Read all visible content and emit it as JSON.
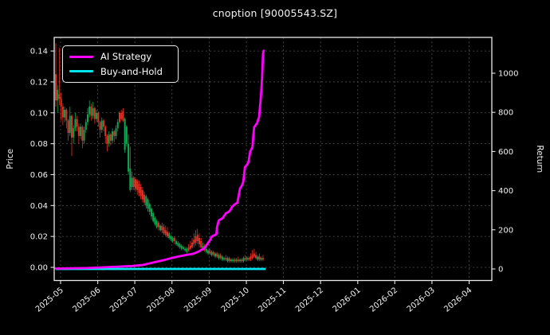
{
  "title": "cnoption [90005543.SZ]",
  "legend": {
    "items": [
      {
        "label": "AI Strategy",
        "color": "#ff00ff"
      },
      {
        "label": "Buy-and-Hold",
        "color": "#00e5ee"
      }
    ]
  },
  "colors": {
    "background": "#000000",
    "text": "#f2f2f2",
    "spine": "#e9e9e9",
    "grid": "#4f4f4f",
    "candle_up": "#0ca750",
    "candle_down": "#e03328",
    "ai_line": "#ff00ff",
    "buyhold_line": "#00e5ee"
  },
  "chart_data": {
    "type": "candlestick+line",
    "title": "cnoption [90005543.SZ]",
    "xlabel": "",
    "ylabel_left": "Price",
    "ylabel_right": "Return",
    "grid": true,
    "legend_position": "upper-left",
    "x_tick_labels": [
      "2025-05",
      "2025-06",
      "2025-07",
      "2025-08",
      "2025-09",
      "2025-10",
      "2025-11",
      "2025-12",
      "2026-01",
      "2026-02",
      "2026-03",
      "2026-04"
    ],
    "x_tick_days": [
      2.7,
      23.7,
      44.6,
      65.6,
      86.6,
      107.6,
      128.5,
      149.5,
      170.5,
      191.4,
      212.4,
      233.4
    ],
    "xlim_days": [
      -0.9,
      246.2
    ],
    "price_ticks": [
      0.0,
      0.02,
      0.04,
      0.06,
      0.08,
      0.1,
      0.12,
      0.14
    ],
    "price_tick_labels": [
      "0.00",
      "0.02",
      "0.04",
      "0.06",
      "0.08",
      "0.10",
      "0.12",
      "0.14"
    ],
    "price_ylim": [
      -0.0085,
      0.1488
    ],
    "return_ticks": [
      0,
      200,
      400,
      600,
      800,
      1000
    ],
    "return_tick_labels": [
      "0",
      "200",
      "400",
      "600",
      "800",
      "1000"
    ],
    "return_ylim": [
      -59,
      1183
    ],
    "candles_note": "daily OHLC [open,high,low,close]; day 0 = first session May 2025; price peaks ~0.145 early May, declines to ~0.005 by late Oct 2025",
    "candles": [
      [
        0.125,
        0.145,
        0.104,
        0.108
      ],
      [
        0.108,
        0.118,
        0.1,
        0.115
      ],
      [
        0.112,
        0.142,
        0.105,
        0.109
      ],
      [
        0.109,
        0.113,
        0.095,
        0.104
      ],
      [
        0.104,
        0.106,
        0.092,
        0.097
      ],
      [
        0.097,
        0.104,
        0.094,
        0.102
      ],
      [
        0.102,
        0.103,
        0.09,
        0.095
      ],
      [
        0.095,
        0.096,
        0.082,
        0.087
      ],
      [
        0.087,
        0.104,
        0.085,
        0.098
      ],
      [
        0.098,
        0.099,
        0.072,
        0.084
      ],
      [
        0.084,
        0.092,
        0.08,
        0.09
      ],
      [
        0.09,
        0.1,
        0.088,
        0.096
      ],
      [
        0.096,
        0.098,
        0.088,
        0.091
      ],
      [
        0.091,
        0.093,
        0.08,
        0.085
      ],
      [
        0.085,
        0.093,
        0.083,
        0.091
      ],
      [
        0.091,
        0.092,
        0.077,
        0.082
      ],
      [
        0.082,
        0.091,
        0.08,
        0.089
      ],
      [
        0.089,
        0.096,
        0.087,
        0.094
      ],
      [
        0.094,
        0.103,
        0.092,
        0.099
      ],
      [
        0.099,
        0.108,
        0.097,
        0.104
      ],
      [
        0.104,
        0.106,
        0.095,
        0.098
      ],
      [
        0.098,
        0.107,
        0.096,
        0.103
      ],
      [
        0.103,
        0.104,
        0.093,
        0.096
      ],
      [
        0.096,
        0.102,
        0.094,
        0.1
      ],
      [
        0.1,
        0.101,
        0.091,
        0.094
      ],
      [
        0.094,
        0.095,
        0.084,
        0.089
      ],
      [
        0.089,
        0.097,
        0.087,
        0.095
      ],
      [
        0.095,
        0.096,
        0.088,
        0.091
      ],
      [
        0.091,
        0.092,
        0.08,
        0.085
      ],
      [
        0.085,
        0.086,
        0.075,
        0.08
      ],
      [
        0.08,
        0.088,
        0.078,
        0.086
      ],
      [
        0.086,
        0.087,
        0.079,
        0.082
      ],
      [
        0.082,
        0.09,
        0.08,
        0.088
      ],
      [
        0.088,
        0.089,
        0.081,
        0.085
      ],
      [
        0.085,
        0.092,
        0.083,
        0.09
      ],
      [
        0.09,
        0.096,
        0.088,
        0.094
      ],
      [
        0.1,
        0.101,
        0.093,
        0.094
      ],
      [
        0.1,
        0.102,
        0.095,
        0.096
      ],
      [
        0.101,
        0.103,
        0.094,
        0.095
      ],
      [
        0.076,
        0.097,
        0.074,
        0.096
      ],
      [
        0.08,
        0.092,
        0.078,
        0.091
      ],
      [
        0.062,
        0.086,
        0.06,
        0.08
      ],
      [
        0.05,
        0.078,
        0.049,
        0.064
      ],
      [
        0.052,
        0.062,
        0.05,
        0.058
      ],
      [
        0.058,
        0.059,
        0.05,
        0.052
      ],
      [
        0.057,
        0.058,
        0.049,
        0.051
      ],
      [
        0.056,
        0.057,
        0.047,
        0.05
      ],
      [
        0.054,
        0.056,
        0.046,
        0.048
      ],
      [
        0.052,
        0.054,
        0.044,
        0.046
      ],
      [
        0.05,
        0.052,
        0.042,
        0.044
      ],
      [
        0.047,
        0.049,
        0.04,
        0.042
      ],
      [
        0.04,
        0.047,
        0.038,
        0.046
      ],
      [
        0.038,
        0.045,
        0.036,
        0.044
      ],
      [
        0.036,
        0.042,
        0.034,
        0.041
      ],
      [
        0.033,
        0.039,
        0.031,
        0.038
      ],
      [
        0.03,
        0.036,
        0.029,
        0.035
      ],
      [
        0.028,
        0.033,
        0.027,
        0.032
      ],
      [
        0.026,
        0.031,
        0.025,
        0.03
      ],
      [
        0.029,
        0.03,
        0.024,
        0.026
      ],
      [
        0.024,
        0.028,
        0.023,
        0.027
      ],
      [
        0.027,
        0.029,
        0.022,
        0.024
      ],
      [
        0.026,
        0.028,
        0.021,
        0.022
      ],
      [
        0.024,
        0.027,
        0.02,
        0.021
      ],
      [
        0.023,
        0.026,
        0.019,
        0.02
      ],
      [
        0.019,
        0.023,
        0.018,
        0.022
      ],
      [
        0.018,
        0.021,
        0.017,
        0.02
      ],
      [
        0.017,
        0.02,
        0.016,
        0.019
      ],
      [
        0.019,
        0.02,
        0.015,
        0.017
      ],
      [
        0.015,
        0.018,
        0.014,
        0.017
      ],
      [
        0.014,
        0.017,
        0.013,
        0.016
      ],
      [
        0.013,
        0.016,
        0.012,
        0.015
      ],
      [
        0.012,
        0.015,
        0.011,
        0.014
      ],
      [
        0.012,
        0.014,
        0.011,
        0.013
      ],
      [
        0.011,
        0.013,
        0.01,
        0.012
      ],
      [
        0.01,
        0.013,
        0.009,
        0.012
      ],
      [
        0.013,
        0.015,
        0.01,
        0.011
      ],
      [
        0.014,
        0.017,
        0.011,
        0.012
      ],
      [
        0.016,
        0.019,
        0.012,
        0.013
      ],
      [
        0.018,
        0.022,
        0.013,
        0.015
      ],
      [
        0.02,
        0.024,
        0.014,
        0.016
      ],
      [
        0.021,
        0.025,
        0.015,
        0.017
      ],
      [
        0.019,
        0.022,
        0.013,
        0.015
      ],
      [
        0.017,
        0.019,
        0.012,
        0.013
      ],
      [
        0.012,
        0.016,
        0.011,
        0.014
      ],
      [
        0.014,
        0.015,
        0.01,
        0.011
      ],
      [
        0.01,
        0.013,
        0.009,
        0.012
      ],
      [
        0.009,
        0.012,
        0.008,
        0.011
      ],
      [
        0.011,
        0.012,
        0.008,
        0.009
      ],
      [
        0.008,
        0.011,
        0.007,
        0.01
      ],
      [
        0.01,
        0.011,
        0.007,
        0.008
      ],
      [
        0.007,
        0.01,
        0.006,
        0.009
      ],
      [
        0.009,
        0.01,
        0.006,
        0.007
      ],
      [
        0.006,
        0.009,
        0.005,
        0.008
      ],
      [
        0.008,
        0.009,
        0.005,
        0.006
      ],
      [
        0.005,
        0.008,
        0.004,
        0.007
      ],
      [
        0.005,
        0.007,
        0.004,
        0.006
      ],
      [
        0.006,
        0.008,
        0.004,
        0.005
      ],
      [
        0.004,
        0.007,
        0.003,
        0.006
      ],
      [
        0.006,
        0.007,
        0.003,
        0.004
      ],
      [
        0.004,
        0.006,
        0.003,
        0.005
      ],
      [
        0.004,
        0.006,
        0.003,
        0.005
      ],
      [
        0.005,
        0.006,
        0.003,
        0.004
      ],
      [
        0.004,
        0.006,
        0.003,
        0.005
      ],
      [
        0.005,
        0.007,
        0.003,
        0.004
      ],
      [
        0.004,
        0.006,
        0.003,
        0.005
      ],
      [
        0.005,
        0.006,
        0.003,
        0.004
      ],
      [
        0.004,
        0.007,
        0.003,
        0.006
      ],
      [
        0.006,
        0.008,
        0.004,
        0.005
      ],
      [
        0.005,
        0.007,
        0.004,
        0.006
      ],
      [
        0.006,
        0.007,
        0.004,
        0.005
      ],
      [
        0.007,
        0.009,
        0.004,
        0.005
      ],
      [
        0.008,
        0.011,
        0.005,
        0.006
      ],
      [
        0.009,
        0.012,
        0.006,
        0.007
      ],
      [
        0.008,
        0.01,
        0.005,
        0.006
      ],
      [
        0.005,
        0.008,
        0.004,
        0.007
      ],
      [
        0.007,
        0.009,
        0.004,
        0.005
      ],
      [
        0.005,
        0.007,
        0.004,
        0.006
      ],
      [
        0.006,
        0.008,
        0.004,
        0.005
      ]
    ],
    "series": [
      {
        "name": "AI Strategy",
        "axis": "return",
        "note": "cumulative return rises from ~0 in May to ~1115 by mid/late Oct 2025; stepwise exponential climb",
        "points": [
          [
            0,
            2
          ],
          [
            18,
            5
          ],
          [
            31,
            10
          ],
          [
            43,
            15
          ],
          [
            49,
            20
          ],
          [
            56,
            35
          ],
          [
            61,
            45
          ],
          [
            65,
            55
          ],
          [
            70,
            65
          ],
          [
            74,
            72
          ],
          [
            77,
            76
          ],
          [
            80,
            86
          ],
          [
            82,
            96
          ],
          [
            84,
            106
          ],
          [
            85,
            120
          ],
          [
            87,
            146
          ],
          [
            88,
            165
          ],
          [
            90,
            174
          ],
          [
            90.7,
            178
          ],
          [
            91,
            212
          ],
          [
            92,
            248
          ],
          [
            94,
            258
          ],
          [
            95,
            270
          ],
          [
            96,
            284
          ],
          [
            97.5,
            291
          ],
          [
            98.5,
            300
          ],
          [
            99.5,
            317
          ],
          [
            101,
            330
          ],
          [
            102.5,
            338
          ],
          [
            103.4,
            380
          ],
          [
            104,
            411
          ],
          [
            105,
            425
          ],
          [
            105.8,
            443
          ],
          [
            106.3,
            480
          ],
          [
            106.8,
            520
          ],
          [
            108,
            533
          ],
          [
            108.8,
            546
          ],
          [
            109.3,
            575
          ],
          [
            109.8,
            602
          ],
          [
            110.6,
            614
          ],
          [
            111.1,
            626
          ],
          [
            111.5,
            680
          ],
          [
            112,
            724
          ],
          [
            113,
            737
          ],
          [
            113.8,
            748
          ],
          [
            114.3,
            764
          ],
          [
            114.8,
            776
          ],
          [
            115.2,
            820
          ],
          [
            115.6,
            858
          ],
          [
            116.1,
            920
          ],
          [
            116.5,
            980
          ],
          [
            117,
            1100
          ],
          [
            117.4,
            1115
          ]
        ],
        "final_value": 1115
      },
      {
        "name": "Buy-and-Hold",
        "axis": "return",
        "note": "flat at ~0 for entire period",
        "points": [
          [
            0,
            0
          ],
          [
            118.5,
            0
          ]
        ],
        "final_value": 0
      }
    ]
  },
  "axes": {
    "left": {
      "label": "Price"
    },
    "right": {
      "label": "Return"
    },
    "bottom": {
      "label": ""
    }
  }
}
